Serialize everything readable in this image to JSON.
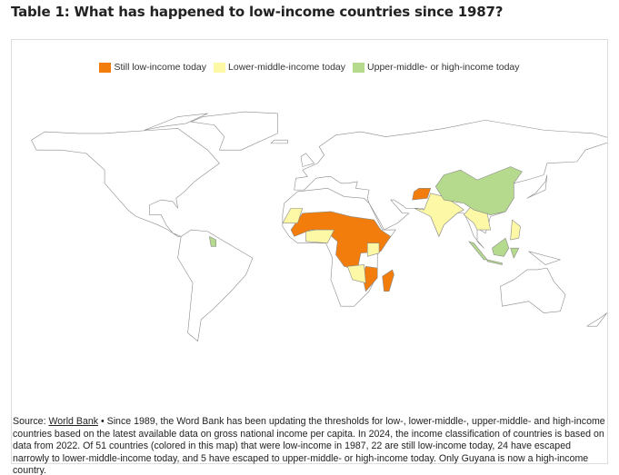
{
  "title": "Table 1: What has happened to low-income countries since 1987?",
  "legend": [
    {
      "label": "Still low-income today",
      "color": "#f27d0c"
    },
    {
      "label": "Lower-middle-income today",
      "color": "#fdf8a6"
    },
    {
      "label": "Upper-middle- or high-income today",
      "color": "#b5da8d"
    }
  ],
  "source": {
    "prefix": "Source:",
    "link": "World Bank",
    "text": "• Since 1989, the Word Bank has been updating the thresholds for low-, lower-middle-, upper-middle- and high-income countries based on the latest available data on gross national income per capita. In 2024, the income classification of countries is based on data from 2022. Of 51 countries (colored in this map) that were low-income in 1987, 22 are still low-income today, 24 have escaped narrowly to lower-middle-income today, and 5 have escaped to upper-middle- or high-income today. Only Guyana is now a high-income country."
  }
}
